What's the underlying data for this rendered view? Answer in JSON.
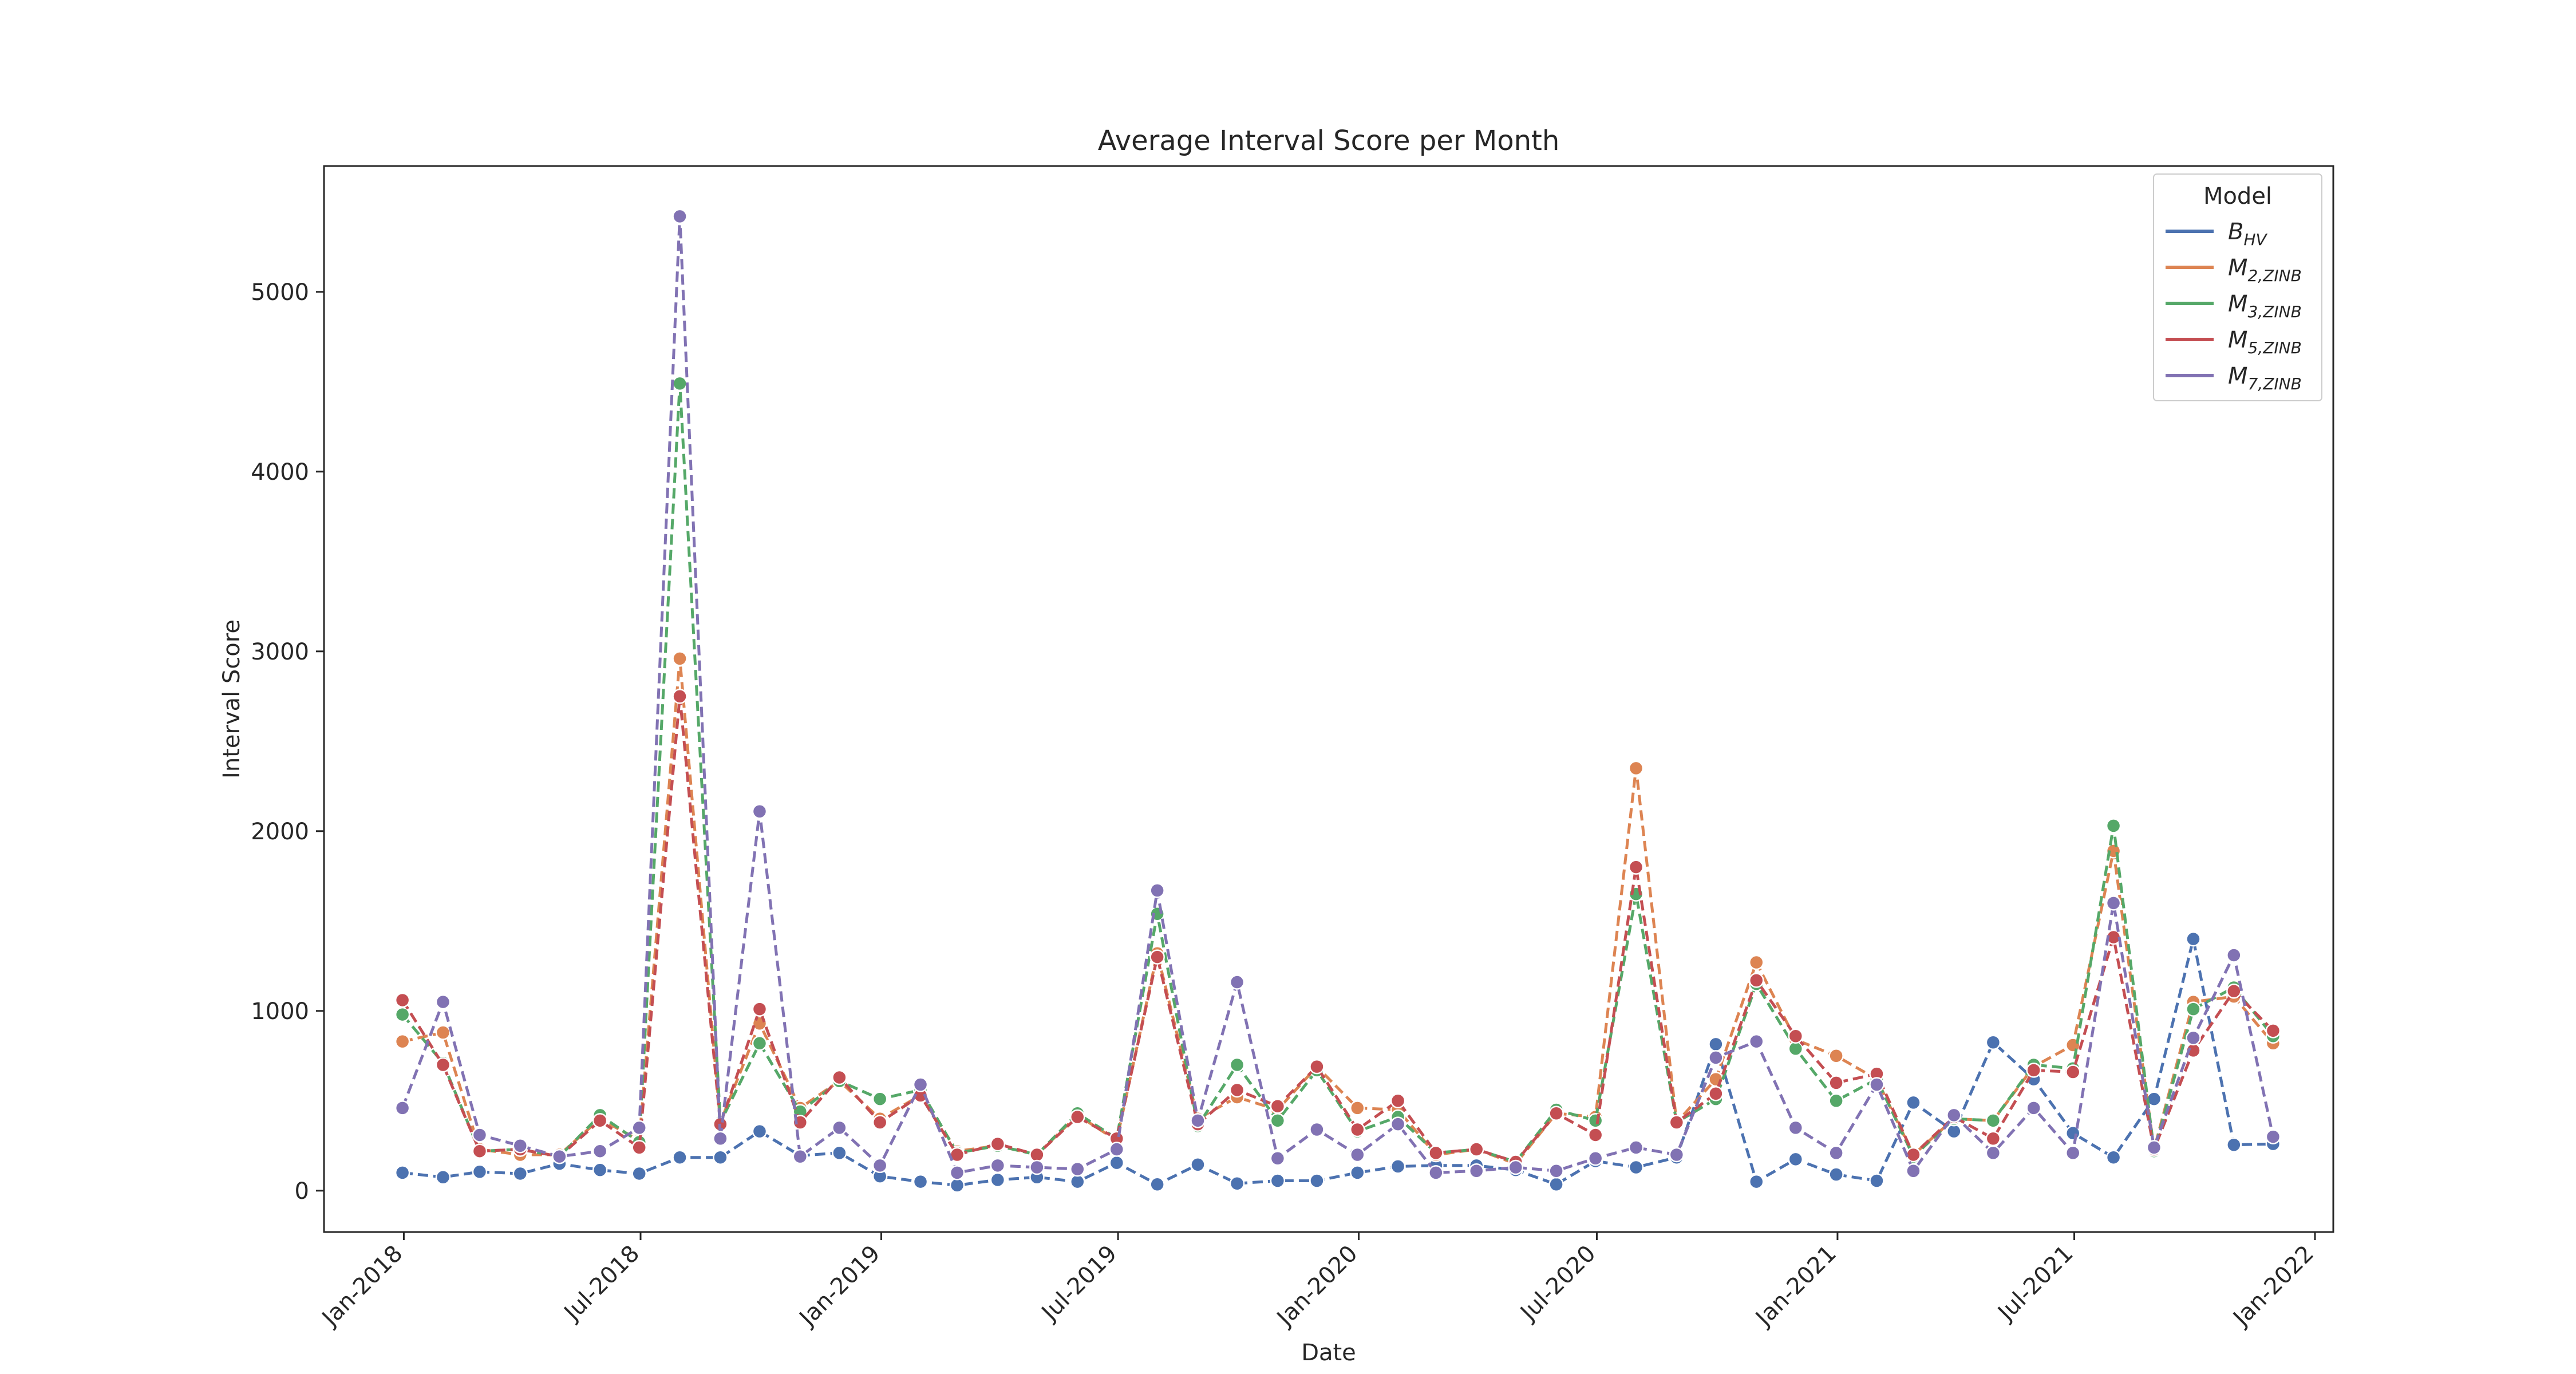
{
  "chart_data": {
    "type": "line",
    "title": "Average Interval Score per Month",
    "xlabel": "Date",
    "ylabel": "Interval Score",
    "x_axis_type": "date",
    "xlim": [
      "2017-11-01",
      "2022-01-15"
    ],
    "ylim": [
      -230,
      5700
    ],
    "grid": false,
    "x_ticks": [
      {
        "date": "2018-01-01",
        "label": "Jan-2018"
      },
      {
        "date": "2018-07-01",
        "label": "Jul-2018"
      },
      {
        "date": "2019-01-01",
        "label": "Jan-2019"
      },
      {
        "date": "2019-07-01",
        "label": "Jul-2019"
      },
      {
        "date": "2020-01-01",
        "label": "Jan-2020"
      },
      {
        "date": "2020-07-01",
        "label": "Jul-2020"
      },
      {
        "date": "2021-01-01",
        "label": "Jan-2021"
      },
      {
        "date": "2021-07-01",
        "label": "Jul-2021"
      },
      {
        "date": "2022-01-01",
        "label": "Jan-2022"
      }
    ],
    "y_ticks": [
      0,
      1000,
      2000,
      3000,
      4000,
      5000
    ],
    "legend": {
      "title": "Model",
      "placement": "top-right"
    },
    "x": [
      "2017-12-31",
      "2018-01-31",
      "2018-02-28",
      "2018-03-31",
      "2018-04-30",
      "2018-05-31",
      "2018-06-30",
      "2018-07-31",
      "2018-08-31",
      "2018-09-30",
      "2018-10-31",
      "2018-11-30",
      "2018-12-31",
      "2019-01-31",
      "2019-02-28",
      "2019-03-31",
      "2019-04-30",
      "2019-05-31",
      "2019-06-30",
      "2019-07-31",
      "2019-08-31",
      "2019-09-30",
      "2019-10-31",
      "2019-11-30",
      "2019-12-31",
      "2020-01-31",
      "2020-02-29",
      "2020-03-31",
      "2020-04-30",
      "2020-05-31",
      "2020-06-30",
      "2020-07-31",
      "2020-08-31",
      "2020-09-30",
      "2020-10-31",
      "2020-11-30",
      "2020-12-31",
      "2021-01-31",
      "2021-02-28",
      "2021-03-31",
      "2021-04-30",
      "2021-05-31",
      "2021-06-30",
      "2021-07-31",
      "2021-08-31",
      "2021-09-30",
      "2021-10-31",
      "2021-11-30"
    ],
    "series": [
      {
        "name": "B",
        "name_sub": "HV",
        "color": "#4c72b0",
        "values": [
          100,
          75,
          105,
          95,
          150,
          115,
          95,
          185,
          185,
          330,
          195,
          210,
          80,
          50,
          30,
          60,
          75,
          50,
          155,
          35,
          145,
          40,
          55,
          55,
          100,
          135,
          140,
          140,
          115,
          35,
          165,
          130,
          185,
          815,
          50,
          175,
          90,
          55,
          490,
          330,
          825,
          620,
          320,
          185,
          510,
          1400,
          255,
          260
        ]
      },
      {
        "name": "M",
        "name_sub": "2,ZINB",
        "color": "#dd8452",
        "values": [
          830,
          880,
          230,
          200,
          200,
          400,
          280,
          2960,
          380,
          930,
          460,
          610,
          400,
          530,
          220,
          250,
          200,
          420,
          280,
          1320,
          400,
          520,
          450,
          690,
          460,
          450,
          200,
          230,
          150,
          430,
          410,
          2350,
          380,
          620,
          1270,
          840,
          750,
          620,
          200,
          400,
          390,
          690,
          810,
          1890,
          230,
          1050,
          1080,
          820
        ]
      },
      {
        "name": "M",
        "name_sub": "3,ZINB",
        "color": "#55a868",
        "values": [
          980,
          710,
          220,
          230,
          190,
          420,
          270,
          4490,
          380,
          820,
          440,
          610,
          510,
          560,
          210,
          250,
          200,
          430,
          290,
          1540,
          360,
          700,
          390,
          670,
          330,
          410,
          210,
          230,
          160,
          450,
          390,
          1650,
          380,
          510,
          1150,
          790,
          500,
          620,
          190,
          400,
          390,
          700,
          680,
          2030,
          220,
          1010,
          1130,
          860
        ]
      },
      {
        "name": "M",
        "name_sub": "5,ZINB",
        "color": "#c44e52",
        "values": [
          1060,
          700,
          220,
          230,
          190,
          390,
          240,
          2750,
          370,
          1010,
          380,
          630,
          380,
          530,
          200,
          260,
          200,
          410,
          290,
          1300,
          370,
          560,
          470,
          690,
          340,
          500,
          210,
          230,
          160,
          430,
          310,
          1800,
          380,
          540,
          1170,
          860,
          600,
          650,
          200,
          410,
          290,
          670,
          660,
          1410,
          230,
          780,
          1110,
          890
        ]
      },
      {
        "name": "M",
        "name_sub": "7,ZINB",
        "color": "#8172b3",
        "values": [
          460,
          1050,
          310,
          250,
          190,
          220,
          350,
          5420,
          290,
          2110,
          190,
          350,
          140,
          590,
          100,
          140,
          130,
          120,
          230,
          1670,
          390,
          1160,
          180,
          340,
          200,
          370,
          100,
          110,
          130,
          110,
          180,
          240,
          200,
          740,
          830,
          350,
          210,
          590,
          110,
          420,
          210,
          460,
          210,
          1600,
          240,
          850,
          1310,
          300
        ]
      }
    ]
  }
}
